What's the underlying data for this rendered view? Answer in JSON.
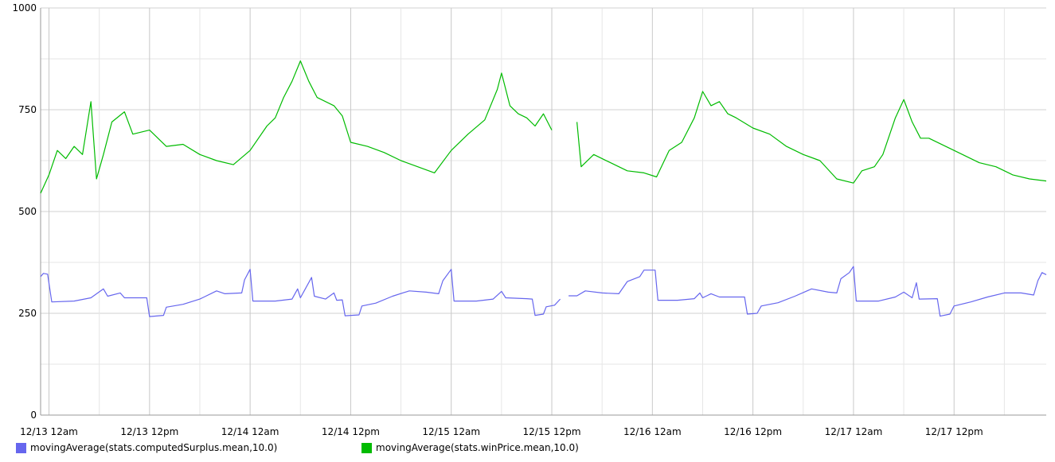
{
  "chart_data": {
    "type": "line",
    "title": "",
    "xlabel": "",
    "ylabel": "",
    "ylim": [
      0,
      1000
    ],
    "yticks": [
      0,
      250,
      500,
      750,
      1000
    ],
    "ytick_labels": [
      "0",
      "250",
      "500",
      "750",
      "1000"
    ],
    "xlim": [
      "2012-12-12 23:00",
      "2012-12-17 23:00"
    ],
    "xticks": [
      "2012-12-13 00:00",
      "2012-12-13 12:00",
      "2012-12-14 00:00",
      "2012-12-14 12:00",
      "2012-12-15 00:00",
      "2012-12-15 12:00",
      "2012-12-16 00:00",
      "2012-12-16 12:00",
      "2012-12-17 00:00",
      "2012-12-17 12:00"
    ],
    "xtick_labels": [
      "12/13 12am",
      "12/13 12pm",
      "12/14 12am",
      "12/14 12pm",
      "12/15 12am",
      "12/15 12pm",
      "12/16 12am",
      "12/16 12pm",
      "12/17 12am",
      "12/17 12pm"
    ],
    "grid": true,
    "legend_position": "bottom",
    "series": [
      {
        "name": "movingAverage(stats.computedSurplus.mean,10.0)",
        "color": "#6666ee",
        "points": [
          [
            "2012-12-12 23:00",
            340
          ],
          [
            "2012-12-12 23:20",
            348
          ],
          [
            "2012-12-12 23:50",
            346
          ],
          [
            "2012-12-13 00:20",
            278
          ],
          [
            "2012-12-13 03:00",
            280
          ],
          [
            "2012-12-13 05:00",
            288
          ],
          [
            "2012-12-13 06:30",
            310
          ],
          [
            "2012-12-13 07:00",
            292
          ],
          [
            "2012-12-13 08:30",
            300
          ],
          [
            "2012-12-13 09:00",
            288
          ],
          [
            "2012-12-13 11:40",
            288
          ],
          [
            "2012-12-13 12:00",
            242
          ],
          [
            "2012-12-13 13:40",
            245
          ],
          [
            "2012-12-13 14:00",
            265
          ],
          [
            "2012-12-13 16:00",
            272
          ],
          [
            "2012-12-13 18:00",
            285
          ],
          [
            "2012-12-13 20:00",
            305
          ],
          [
            "2012-12-13 21:00",
            298
          ],
          [
            "2012-12-13 23:00",
            300
          ],
          [
            "2012-12-13 23:20",
            332
          ],
          [
            "2012-12-14 00:00",
            358
          ],
          [
            "2012-12-14 00:20",
            280
          ],
          [
            "2012-12-14 03:00",
            280
          ],
          [
            "2012-12-14 05:00",
            285
          ],
          [
            "2012-12-14 05:40",
            310
          ],
          [
            "2012-12-14 06:00",
            288
          ],
          [
            "2012-12-14 07:20",
            338
          ],
          [
            "2012-12-14 07:40",
            292
          ],
          [
            "2012-12-14 09:00",
            285
          ],
          [
            "2012-12-14 10:00",
            300
          ],
          [
            "2012-12-14 10:20",
            282
          ],
          [
            "2012-12-14 11:00",
            283
          ],
          [
            "2012-12-14 11:20",
            244
          ],
          [
            "2012-12-14 13:00",
            246
          ],
          [
            "2012-12-14 13:20",
            268
          ],
          [
            "2012-12-14 15:00",
            275
          ],
          [
            "2012-12-14 17:00",
            292
          ],
          [
            "2012-12-14 19:00",
            305
          ],
          [
            "2012-12-14 21:00",
            302
          ],
          [
            "2012-12-14 22:30",
            298
          ],
          [
            "2012-12-14 23:00",
            330
          ],
          [
            "2012-12-15 00:00",
            358
          ],
          [
            "2012-12-15 00:20",
            280
          ],
          [
            "2012-12-15 03:00",
            280
          ],
          [
            "2012-12-15 05:00",
            285
          ],
          [
            "2012-12-15 06:00",
            304
          ],
          [
            "2012-12-15 06:30",
            288
          ],
          [
            "2012-12-15 09:00",
            286
          ],
          [
            "2012-12-15 09:40",
            285
          ],
          [
            "2012-12-15 10:00",
            245
          ],
          [
            "2012-12-15 11:00",
            248
          ],
          [
            "2012-12-15 11:20",
            266
          ],
          [
            "2012-12-15 12:20",
            270
          ],
          [
            "2012-12-15 13:00",
            285
          ],
          null,
          [
            "2012-12-15 14:00",
            293
          ],
          [
            "2012-12-15 15:00",
            293
          ],
          [
            "2012-12-15 16:00",
            305
          ],
          [
            "2012-12-15 18:00",
            300
          ],
          [
            "2012-12-15 20:00",
            298
          ],
          [
            "2012-12-15 21:00",
            328
          ],
          [
            "2012-12-15 22:30",
            340
          ],
          [
            "2012-12-15 23:00",
            356
          ],
          [
            "2012-12-16 00:20",
            356
          ],
          [
            "2012-12-16 00:40",
            282
          ],
          [
            "2012-12-16 03:00",
            282
          ],
          [
            "2012-12-16 05:00",
            286
          ],
          [
            "2012-12-16 05:40",
            300
          ],
          [
            "2012-12-16 06:00",
            288
          ],
          [
            "2012-12-16 07:00",
            298
          ],
          [
            "2012-12-16 08:00",
            290
          ],
          [
            "2012-12-16 11:00",
            290
          ],
          [
            "2012-12-16 11:20",
            248
          ],
          [
            "2012-12-16 12:30",
            250
          ],
          [
            "2012-12-16 13:00",
            268
          ],
          [
            "2012-12-16 15:00",
            276
          ],
          [
            "2012-12-16 17:00",
            292
          ],
          [
            "2012-12-16 19:00",
            310
          ],
          [
            "2012-12-16 21:00",
            302
          ],
          [
            "2012-12-16 22:00",
            300
          ],
          [
            "2012-12-16 22:30",
            335
          ],
          [
            "2012-12-16 23:30",
            350
          ],
          [
            "2012-12-17 00:00",
            365
          ],
          [
            "2012-12-17 00:20",
            280
          ],
          [
            "2012-12-17 03:00",
            280
          ],
          [
            "2012-12-17 05:00",
            290
          ],
          [
            "2012-12-17 06:00",
            302
          ],
          [
            "2012-12-17 07:00",
            288
          ],
          [
            "2012-12-17 07:30",
            325
          ],
          [
            "2012-12-17 07:50",
            285
          ],
          [
            "2012-12-17 10:00",
            286
          ],
          [
            "2012-12-17 10:20",
            243
          ],
          [
            "2012-12-17 11:30",
            248
          ],
          [
            "2012-12-17 12:00",
            268
          ],
          [
            "2012-12-17 14:00",
            278
          ],
          [
            "2012-12-17 16:00",
            290
          ],
          [
            "2012-12-17 18:00",
            300
          ],
          [
            "2012-12-17 20:00",
            300
          ],
          [
            "2012-12-17 21:30",
            295
          ],
          [
            "2012-12-17 22:00",
            330
          ],
          [
            "2012-12-17 22:30",
            350
          ],
          [
            "2012-12-17 23:00",
            345
          ]
        ]
      },
      {
        "name": "movingAverage(stats.winPrice.mean,10.0)",
        "color": "#00bb00",
        "points": [
          [
            "2012-12-12 23:00",
            545
          ],
          [
            "2012-12-13 00:00",
            590
          ],
          [
            "2012-12-13 01:00",
            650
          ],
          [
            "2012-12-13 02:00",
            630
          ],
          [
            "2012-12-13 03:00",
            660
          ],
          [
            "2012-12-13 04:00",
            640
          ],
          [
            "2012-12-13 05:00",
            770
          ],
          [
            "2012-12-13 05:40",
            580
          ],
          [
            "2012-12-13 06:30",
            640
          ],
          [
            "2012-12-13 07:30",
            720
          ],
          [
            "2012-12-13 09:00",
            745
          ],
          [
            "2012-12-13 10:00",
            690
          ],
          [
            "2012-12-13 12:00",
            700
          ],
          [
            "2012-12-13 14:00",
            660
          ],
          [
            "2012-12-13 16:00",
            665
          ],
          [
            "2012-12-13 18:00",
            640
          ],
          [
            "2012-12-13 20:00",
            625
          ],
          [
            "2012-12-13 22:00",
            615
          ],
          [
            "2012-12-14 00:00",
            650
          ],
          [
            "2012-12-14 02:00",
            710
          ],
          [
            "2012-12-14 03:00",
            730
          ],
          [
            "2012-12-14 04:00",
            780
          ],
          [
            "2012-12-14 05:00",
            820
          ],
          [
            "2012-12-14 06:00",
            870
          ],
          [
            "2012-12-14 07:00",
            820
          ],
          [
            "2012-12-14 08:00",
            780
          ],
          [
            "2012-12-14 10:00",
            760
          ],
          [
            "2012-12-14 11:00",
            735
          ],
          [
            "2012-12-14 12:00",
            670
          ],
          [
            "2012-12-14 14:00",
            660
          ],
          [
            "2012-12-14 16:00",
            645
          ],
          [
            "2012-12-14 18:00",
            625
          ],
          [
            "2012-12-14 20:00",
            610
          ],
          [
            "2012-12-14 22:00",
            595
          ],
          [
            "2012-12-15 00:00",
            650
          ],
          [
            "2012-12-15 02:00",
            690
          ],
          [
            "2012-12-15 04:00",
            725
          ],
          [
            "2012-12-15 05:30",
            800
          ],
          [
            "2012-12-15 06:00",
            840
          ],
          [
            "2012-12-15 07:00",
            760
          ],
          [
            "2012-12-15 08:00",
            740
          ],
          [
            "2012-12-15 09:00",
            730
          ],
          [
            "2012-12-15 10:00",
            710
          ],
          [
            "2012-12-15 11:00",
            740
          ],
          [
            "2012-12-15 12:00",
            700
          ],
          null,
          [
            "2012-12-15 15:00",
            720
          ],
          [
            "2012-12-15 15:30",
            610
          ],
          [
            "2012-12-15 17:00",
            640
          ],
          [
            "2012-12-15 19:00",
            620
          ],
          [
            "2012-12-15 21:00",
            600
          ],
          [
            "2012-12-15 23:00",
            595
          ],
          [
            "2012-12-16 00:30",
            585
          ],
          [
            "2012-12-16 02:00",
            650
          ],
          [
            "2012-12-16 03:30",
            670
          ],
          [
            "2012-12-16 05:00",
            730
          ],
          [
            "2012-12-16 06:00",
            795
          ],
          [
            "2012-12-16 07:00",
            760
          ],
          [
            "2012-12-16 08:00",
            770
          ],
          [
            "2012-12-16 09:00",
            740
          ],
          [
            "2012-12-16 10:00",
            730
          ],
          [
            "2012-12-16 12:00",
            705
          ],
          [
            "2012-12-16 14:00",
            690
          ],
          [
            "2012-12-16 16:00",
            660
          ],
          [
            "2012-12-16 18:00",
            640
          ],
          [
            "2012-12-16 20:00",
            625
          ],
          [
            "2012-12-16 22:00",
            580
          ],
          [
            "2012-12-17 00:00",
            570
          ],
          [
            "2012-12-17 01:00",
            600
          ],
          [
            "2012-12-17 02:30",
            610
          ],
          [
            "2012-12-17 03:30",
            640
          ],
          [
            "2012-12-17 05:00",
            730
          ],
          [
            "2012-12-17 06:00",
            775
          ],
          [
            "2012-12-17 07:00",
            720
          ],
          [
            "2012-12-17 08:00",
            680
          ],
          [
            "2012-12-17 09:00",
            680
          ],
          [
            "2012-12-17 11:00",
            660
          ],
          [
            "2012-12-17 13:00",
            640
          ],
          [
            "2012-12-17 15:00",
            620
          ],
          [
            "2012-12-17 17:00",
            610
          ],
          [
            "2012-12-17 19:00",
            590
          ],
          [
            "2012-12-17 21:00",
            580
          ],
          [
            "2012-12-17 23:00",
            575
          ]
        ]
      }
    ]
  }
}
